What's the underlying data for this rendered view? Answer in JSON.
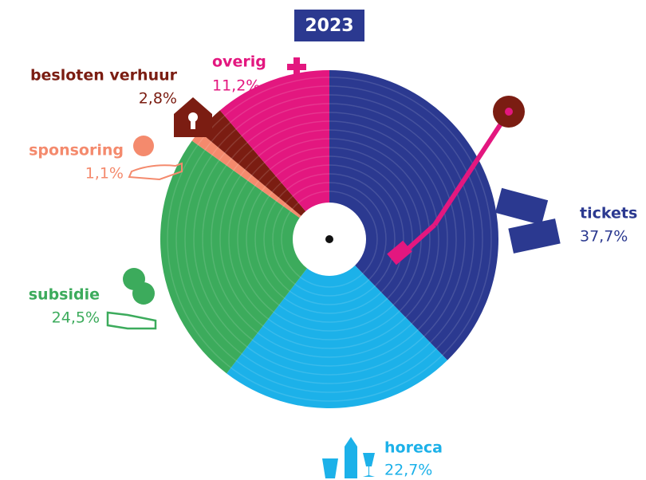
{
  "chart_data": {
    "type": "pie",
    "title": "2023",
    "categories": [
      "tickets",
      "horeca",
      "subsidie",
      "sponsoring",
      "besloten verhuur",
      "overig"
    ],
    "values": [
      37.7,
      22.7,
      24.5,
      1.1,
      2.8,
      11.2
    ],
    "value_labels": [
      "37,7%",
      "22,7%",
      "24,5%",
      "1,1%",
      "2,8%",
      "11,2%"
    ],
    "colors": [
      "#2b3990",
      "#1cb1e9",
      "#3cab5c",
      "#f48a6d",
      "#7b1d12",
      "#e3177f"
    ]
  }
}
